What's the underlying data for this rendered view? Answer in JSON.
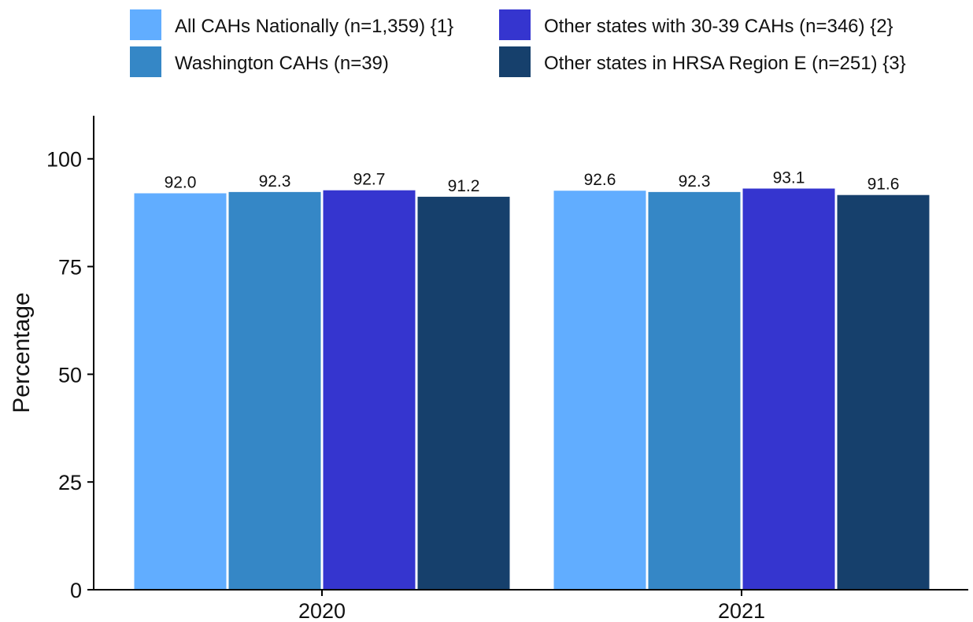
{
  "chart_data": {
    "type": "bar",
    "categories": [
      "2020",
      "2021"
    ],
    "series": [
      {
        "name": "All CAHs Nationally (n=1,359) {1}",
        "color": "#61adff",
        "values": [
          92.0,
          92.6
        ],
        "labels": [
          "92.0",
          "92.6"
        ]
      },
      {
        "name": "Washington CAHs (n=39)",
        "color": "#3587c6",
        "values": [
          92.3,
          92.3
        ],
        "labels": [
          "92.3",
          "92.3"
        ]
      },
      {
        "name": "Other states with 30-39 CAHs (n=346) {2}",
        "color": "#3535cf",
        "values": [
          92.7,
          93.1
        ],
        "labels": [
          "92.7",
          "93.1"
        ]
      },
      {
        "name": "Other states in HRSA Region E (n=251) {3}",
        "color": "#16406c",
        "values": [
          91.2,
          91.6
        ],
        "labels": [
          "91.2",
          "91.6"
        ]
      }
    ],
    "title": "",
    "xlabel": "",
    "ylabel": "Percentage",
    "ylim": [
      0,
      110
    ],
    "yticks": [
      0,
      25,
      50,
      75,
      100
    ],
    "ytick_labels": [
      "0",
      "25",
      "50",
      "75",
      "100"
    ],
    "grid": false,
    "legend_position": "top"
  }
}
